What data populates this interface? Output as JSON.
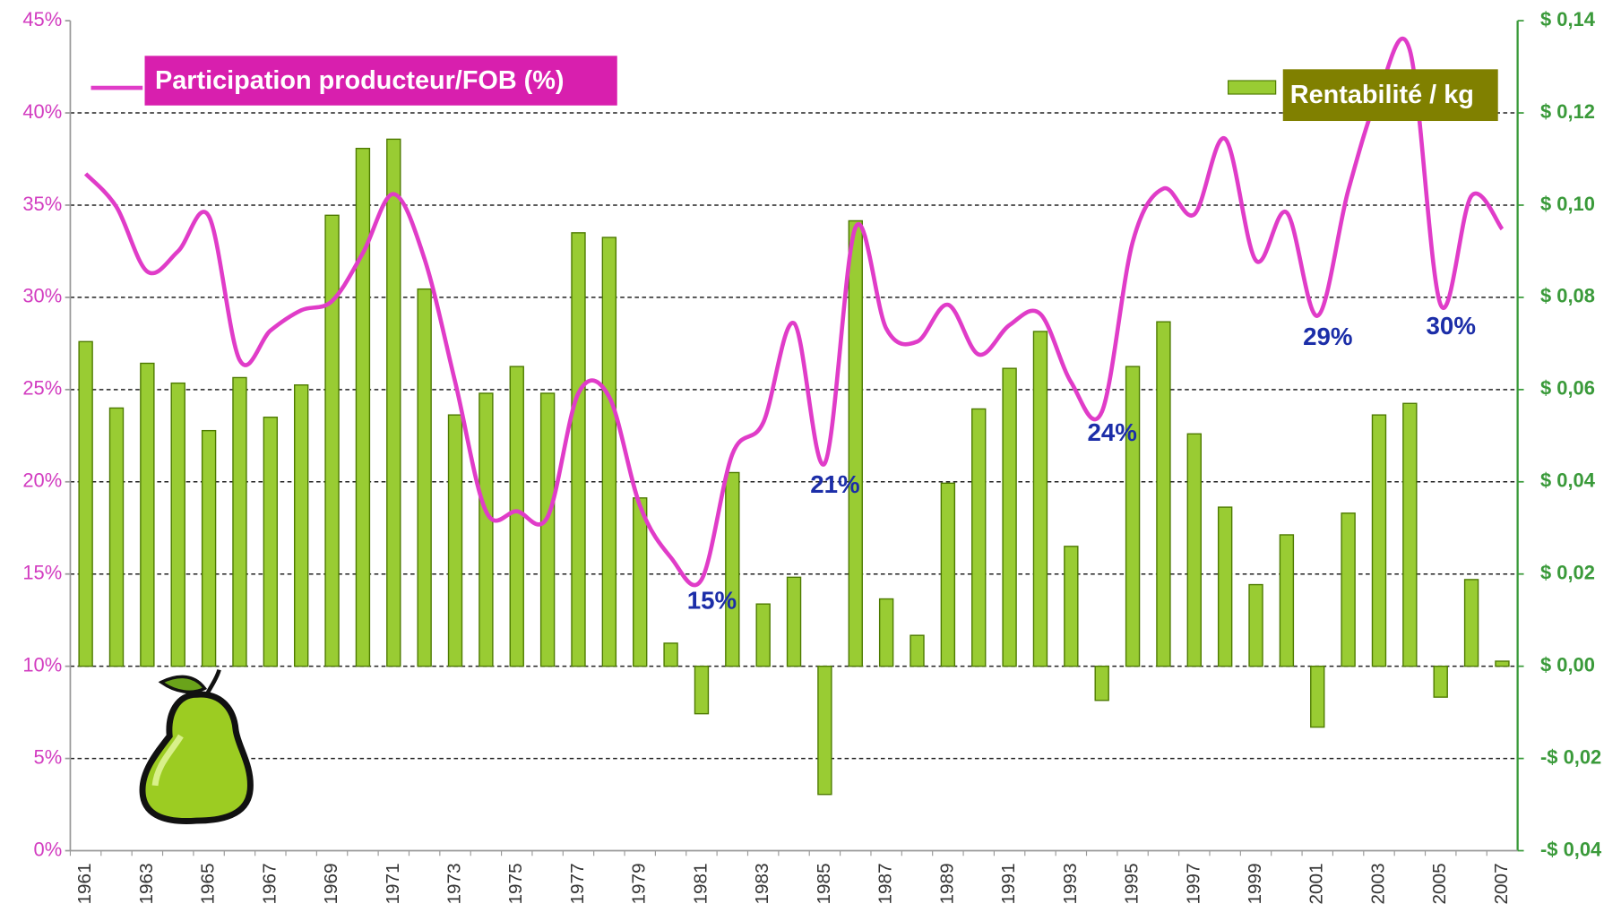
{
  "chart_data": {
    "type": "bar-line",
    "categories": [
      "1961",
      null,
      "1963",
      null,
      "1965",
      null,
      "1967",
      null,
      "1969",
      null,
      "1971",
      null,
      "1973",
      null,
      "1975",
      null,
      "1977",
      null,
      "1979",
      null,
      "1981",
      null,
      "1983",
      null,
      "1985",
      null,
      "1987",
      null,
      "1989",
      null,
      "1991",
      null,
      "1993",
      null,
      "1995",
      null,
      "1997",
      null,
      "1999",
      null,
      "2001",
      null,
      "2003",
      null,
      "2005",
      null,
      "2007"
    ],
    "series": [
      {
        "name": "Participation producteur/FOB (%)",
        "type": "line",
        "axis": "y",
        "color": "#e03cc8",
        "values": [
          36.7,
          34.9,
          31.4,
          32.5,
          34.4,
          26.6,
          28.2,
          29.3,
          29.8,
          32.4,
          35.6,
          32.1,
          25.4,
          18.4,
          18.4,
          18.1,
          24.8,
          24.6,
          18.7,
          15.9,
          14.7,
          21.5,
          23.2,
          28.6,
          21.0,
          33.8,
          28.3,
          27.6,
          29.6,
          26.9,
          28.5,
          29.1,
          25.4,
          23.8,
          33.0,
          35.9,
          34.5,
          38.6,
          32.0,
          34.6,
          29.0,
          35.8,
          41.1,
          43.4,
          29.6,
          35.5,
          33.7
        ]
      },
      {
        "name": "Rentabilité / kg",
        "type": "bar",
        "axis": "y2",
        "color": "#99cc33",
        "values": [
          0.0704,
          0.056,
          0.0657,
          0.0614,
          0.0511,
          0.0626,
          0.054,
          0.061,
          0.0978,
          0.1123,
          0.1143,
          0.0818,
          0.0545,
          0.0592,
          0.065,
          0.0592,
          0.094,
          0.093,
          0.0365,
          0.005,
          -0.0103,
          0.042,
          0.0135,
          0.0193,
          -0.0278,
          0.0966,
          0.0146,
          0.0067,
          0.0397,
          0.0558,
          0.0646,
          0.0726,
          0.026,
          -0.0074,
          0.065,
          0.0747,
          0.0504,
          0.0345,
          0.0177,
          0.0285,
          -0.0132,
          0.0332,
          0.0545,
          0.057,
          -0.0067,
          0.0188,
          0.0011
        ]
      }
    ],
    "ylim": [
      0,
      45
    ],
    "yticks": [
      {
        "value": 0,
        "label": "0%"
      },
      {
        "value": 5,
        "label": "5%"
      },
      {
        "value": 10,
        "label": "10%"
      },
      {
        "value": 15,
        "label": "15%"
      },
      {
        "value": 20,
        "label": "20%"
      },
      {
        "value": 25,
        "label": "25%"
      },
      {
        "value": 30,
        "label": "30%"
      },
      {
        "value": 35,
        "label": "35%"
      },
      {
        "value": 40,
        "label": "40%"
      },
      {
        "value": 45,
        "label": "45%"
      }
    ],
    "y2lim": [
      -0.04,
      0.14
    ],
    "y2ticks": [
      {
        "value": -0.04,
        "label": "-$ 0,04"
      },
      {
        "value": -0.02,
        "label": "-$ 0,02"
      },
      {
        "value": 0,
        "label": "$ 0,00"
      },
      {
        "value": 0.02,
        "label": "$ 0,02"
      },
      {
        "value": 0.04,
        "label": "$ 0,04"
      },
      {
        "value": 0.06,
        "label": "$ 0,06"
      },
      {
        "value": 0.08,
        "label": "$ 0,08"
      },
      {
        "value": 0.1,
        "label": "$ 0,10"
      },
      {
        "value": 0.12,
        "label": "$ 0,12"
      },
      {
        "value": 0.14,
        "label": "$ 0,14"
      }
    ],
    "grid": true,
    "annotations": [
      {
        "label": "15%",
        "category": 20
      },
      {
        "label": "21%",
        "category": 24
      },
      {
        "label": "24%",
        "category": 33
      },
      {
        "label": "29%",
        "category": 40
      },
      {
        "label": "30%",
        "category": 44
      }
    ]
  }
}
